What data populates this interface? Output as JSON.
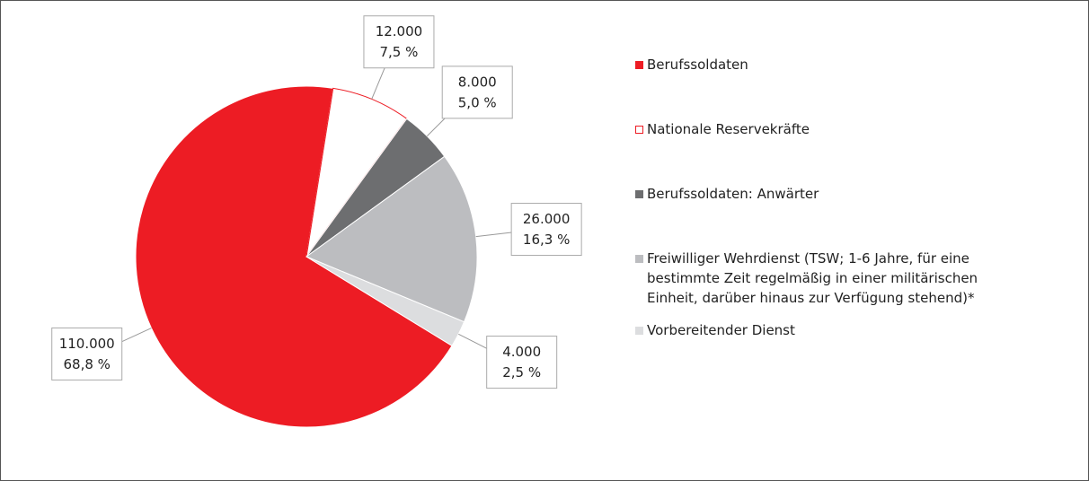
{
  "chart_data": {
    "type": "pie",
    "categories": [
      "Berufssoldaten",
      "Nationale Reservekräfte",
      "Berufssoldaten: Anwärter",
      "Freiwilliger Wehrdienst (TSW; 1-6 Jahre, für eine bestimmte Zeit regelmäßig in einer militärischen Einheit, darüber hinaus zur Verfügung stehend)*",
      "Vorbereitender Dienst"
    ],
    "values": [
      110000,
      12000,
      8000,
      26000,
      4000
    ],
    "value_labels": [
      "110.000",
      "12.000",
      "8.000",
      "26.000",
      "4.000"
    ],
    "percentages": [
      68.8,
      7.5,
      5.0,
      16.3,
      2.5
    ],
    "percentage_labels": [
      "68,8 %",
      "7,5 %",
      "5,0 %",
      "16,3 %",
      "2,5 %"
    ],
    "colors": [
      "#ed1c24",
      "#ffffff",
      "#6d6e70",
      "#bcbdc0",
      "#dcdddf"
    ],
    "legend": "right"
  }
}
